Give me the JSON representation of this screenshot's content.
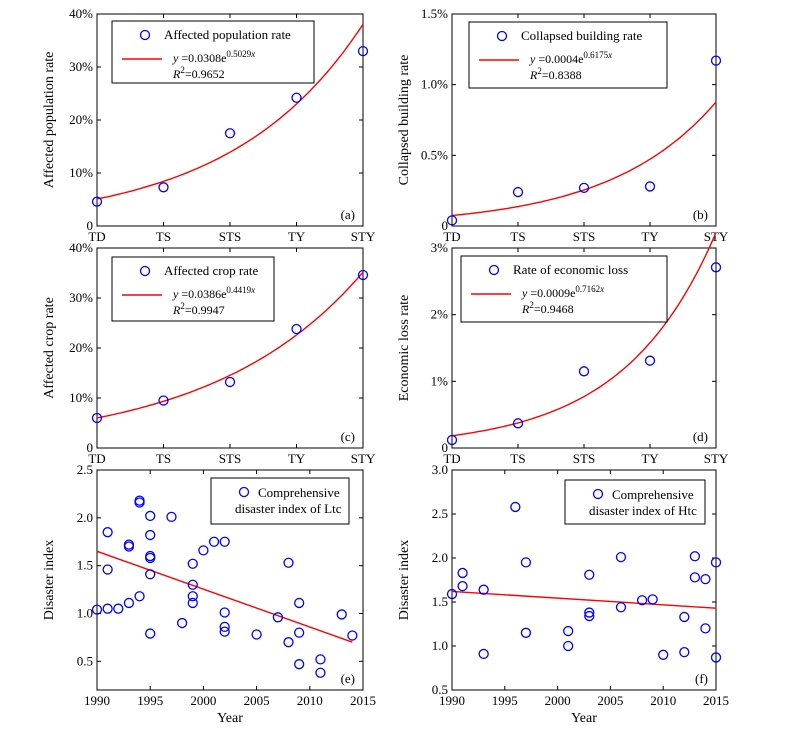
{
  "chart_data": [
    {
      "id": "a",
      "type": "scatter",
      "panel_label": "(a)",
      "ylabel": "Affected population rate",
      "categories": [
        "TD",
        "TS",
        "STS",
        "TY",
        "STY"
      ],
      "yticks": [
        0,
        10,
        20,
        30,
        40
      ],
      "ytick_labels": [
        "0",
        "10%",
        "20%",
        "30%",
        "40%"
      ],
      "ylim": [
        0,
        40
      ],
      "series": [
        {
          "name": "Affected population rate",
          "values": [
            4.6,
            7.3,
            17.5,
            24.2,
            33.0
          ]
        }
      ],
      "fit": {
        "a": 0.0308,
        "b": 0.5029,
        "scale": 100,
        "equation_y": "y",
        "equation_coef": " =0.0308e",
        "equation_exp": "0.5029",
        "equation_var": "x",
        "r2_prefix": "R",
        "r2_sup": "2",
        "r2_value": "=0.9652"
      },
      "legend_position": "top-center"
    },
    {
      "id": "b",
      "type": "scatter",
      "panel_label": "(b)",
      "ylabel": "Collapsed building rate",
      "categories": [
        "TD",
        "TS",
        "STS",
        "TY",
        "STY"
      ],
      "yticks": [
        0,
        0.5,
        1.0,
        1.5
      ],
      "ytick_labels": [
        "0",
        "0.5%",
        "1.0%",
        "1.5%"
      ],
      "ylim": [
        0,
        1.5
      ],
      "series": [
        {
          "name": "Collapsed building rate",
          "values": [
            0.04,
            0.24,
            0.27,
            0.28,
            1.17
          ]
        }
      ],
      "fit": {
        "a": 0.0004,
        "b": 0.6175,
        "scale": 100,
        "equation_y": "y",
        "equation_coef": " =0.0004e",
        "equation_exp": "0.6175",
        "equation_var": "x",
        "r2_prefix": "R",
        "r2_sup": "2",
        "r2_value": "=0.8388"
      },
      "legend_position": "top-center"
    },
    {
      "id": "c",
      "type": "scatter",
      "panel_label": "(c)",
      "ylabel": "Affected crop rate",
      "categories": [
        "TD",
        "TS",
        "STS",
        "TY",
        "STY"
      ],
      "yticks": [
        0,
        10,
        20,
        30,
        40
      ],
      "ytick_labels": [
        "0",
        "10%",
        "20%",
        "30%",
        "40%"
      ],
      "ylim": [
        0,
        40
      ],
      "series": [
        {
          "name": "Affected crop rate",
          "values": [
            6.0,
            9.5,
            13.2,
            23.8,
            34.6
          ]
        }
      ],
      "fit": {
        "a": 0.0386,
        "b": 0.4419,
        "scale": 100,
        "equation_y": "y",
        "equation_coef": " =0.0386e",
        "equation_exp": "0.4419",
        "equation_var": "x",
        "r2_prefix": "R",
        "r2_sup": "2",
        "r2_value": "=0.9947"
      },
      "legend_position": "top-center"
    },
    {
      "id": "d",
      "type": "scatter",
      "panel_label": "(d)",
      "ylabel": "Economic loss rate",
      "categories": [
        "TD",
        "TS",
        "STS",
        "TY",
        "STY"
      ],
      "yticks": [
        0,
        1,
        2,
        3
      ],
      "ytick_labels": [
        "0",
        "1%",
        "2%",
        "3%"
      ],
      "ylim": [
        0,
        3
      ],
      "series": [
        {
          "name": "Rate of economic loss",
          "values": [
            0.12,
            0.37,
            1.15,
            1.31,
            2.71
          ]
        }
      ],
      "fit": {
        "a": 0.0009,
        "b": 0.7162,
        "scale": 100,
        "equation_y": "y",
        "equation_coef": " =0.0009e",
        "equation_exp": "0.7162",
        "equation_var": "x",
        "r2_prefix": "R",
        "r2_sup": "2",
        "r2_value": "=0.9468"
      },
      "legend_position": "top-center"
    },
    {
      "id": "e",
      "type": "scatter",
      "panel_label": "(e)",
      "xlabel": "Year",
      "ylabel": "Disaster index",
      "xlim": [
        1990,
        2015
      ],
      "xticks": [
        1990,
        1995,
        2000,
        2005,
        2010,
        2015
      ],
      "ylim": [
        0.2,
        2.5
      ],
      "yticks": [
        0.5,
        1.0,
        1.5,
        2.0,
        2.5
      ],
      "ytick_labels": [
        "0.5",
        "1.0",
        "1.5",
        "2.0",
        "2.5"
      ],
      "series": [
        {
          "name": "Comprehensive disaster index of Ltc",
          "legend_lines": [
            "Comprehensive",
            "disaster index of Ltc"
          ],
          "points": [
            [
              1990,
              1.04
            ],
            [
              1991,
              1.05
            ],
            [
              1991,
              1.46
            ],
            [
              1991,
              1.85
            ],
            [
              1992,
              1.05
            ],
            [
              1993,
              1.72
            ],
            [
              1993,
              1.7
            ],
            [
              1993,
              1.11
            ],
            [
              1994,
              2.18
            ],
            [
              1994,
              2.16
            ],
            [
              1994,
              1.18
            ],
            [
              1995,
              2.02
            ],
            [
              1995,
              1.82
            ],
            [
              1995,
              1.6
            ],
            [
              1995,
              1.58
            ],
            [
              1995,
              1.41
            ],
            [
              1995,
              0.79
            ],
            [
              1997,
              2.01
            ],
            [
              1998,
              0.9
            ],
            [
              1999,
              1.52
            ],
            [
              1999,
              1.3
            ],
            [
              1999,
              1.18
            ],
            [
              1999,
              1.11
            ],
            [
              2000,
              1.66
            ],
            [
              2001,
              1.75
            ],
            [
              2002,
              1.75
            ],
            [
              2002,
              1.01
            ],
            [
              2002,
              0.86
            ],
            [
              2002,
              0.81
            ],
            [
              2005,
              0.78
            ],
            [
              2007,
              0.96
            ],
            [
              2008,
              1.53
            ],
            [
              2008,
              0.7
            ],
            [
              2009,
              1.11
            ],
            [
              2009,
              0.8
            ],
            [
              2009,
              0.47
            ],
            [
              2011,
              0.52
            ],
            [
              2011,
              0.38
            ],
            [
              2013,
              0.99
            ],
            [
              2014,
              0.77
            ]
          ]
        }
      ],
      "trend": [
        [
          1990,
          1.65
        ],
        [
          2014,
          0.7
        ]
      ],
      "legend_position": "top-center"
    },
    {
      "id": "f",
      "type": "scatter",
      "panel_label": "(f)",
      "xlabel": "Year",
      "ylabel": "Disaster index",
      "xlim": [
        1990,
        2015
      ],
      "xticks": [
        1990,
        1995,
        2000,
        2005,
        2010,
        2015
      ],
      "ylim": [
        0.5,
        3.0
      ],
      "yticks": [
        0.5,
        1.0,
        1.5,
        2.0,
        2.5,
        3.0
      ],
      "ytick_labels": [
        "0.5",
        "1.0",
        "1.5",
        "2.0",
        "2.5",
        "3.0"
      ],
      "series": [
        {
          "name": "Comprehensive disaster index of Htc",
          "legend_lines": [
            "Comprehensive",
            "disaster index of Htc"
          ],
          "points": [
            [
              1990,
              1.59
            ],
            [
              1991,
              1.83
            ],
            [
              1991,
              1.68
            ],
            [
              1993,
              1.64
            ],
            [
              1993,
              0.91
            ],
            [
              1996,
              2.58
            ],
            [
              1997,
              1.95
            ],
            [
              1997,
              1.15
            ],
            [
              2001,
              1.17
            ],
            [
              2001,
              1.0
            ],
            [
              2003,
              1.81
            ],
            [
              2003,
              1.38
            ],
            [
              2003,
              1.34
            ],
            [
              2006,
              2.01
            ],
            [
              2006,
              1.44
            ],
            [
              2008,
              1.52
            ],
            [
              2009,
              1.53
            ],
            [
              2010,
              0.9
            ],
            [
              2012,
              1.33
            ],
            [
              2012,
              0.93
            ],
            [
              2013,
              2.02
            ],
            [
              2013,
              1.78
            ],
            [
              2014,
              1.76
            ],
            [
              2014,
              1.2
            ],
            [
              2015,
              1.95
            ],
            [
              2015,
              0.87
            ]
          ]
        }
      ],
      "trend": [
        [
          1990,
          1.62
        ],
        [
          2015,
          1.43
        ]
      ],
      "legend_position": "top-center"
    }
  ],
  "colors": {
    "marker": "#0000ff",
    "fit_line": "#ff0000",
    "axis": "#000000"
  }
}
